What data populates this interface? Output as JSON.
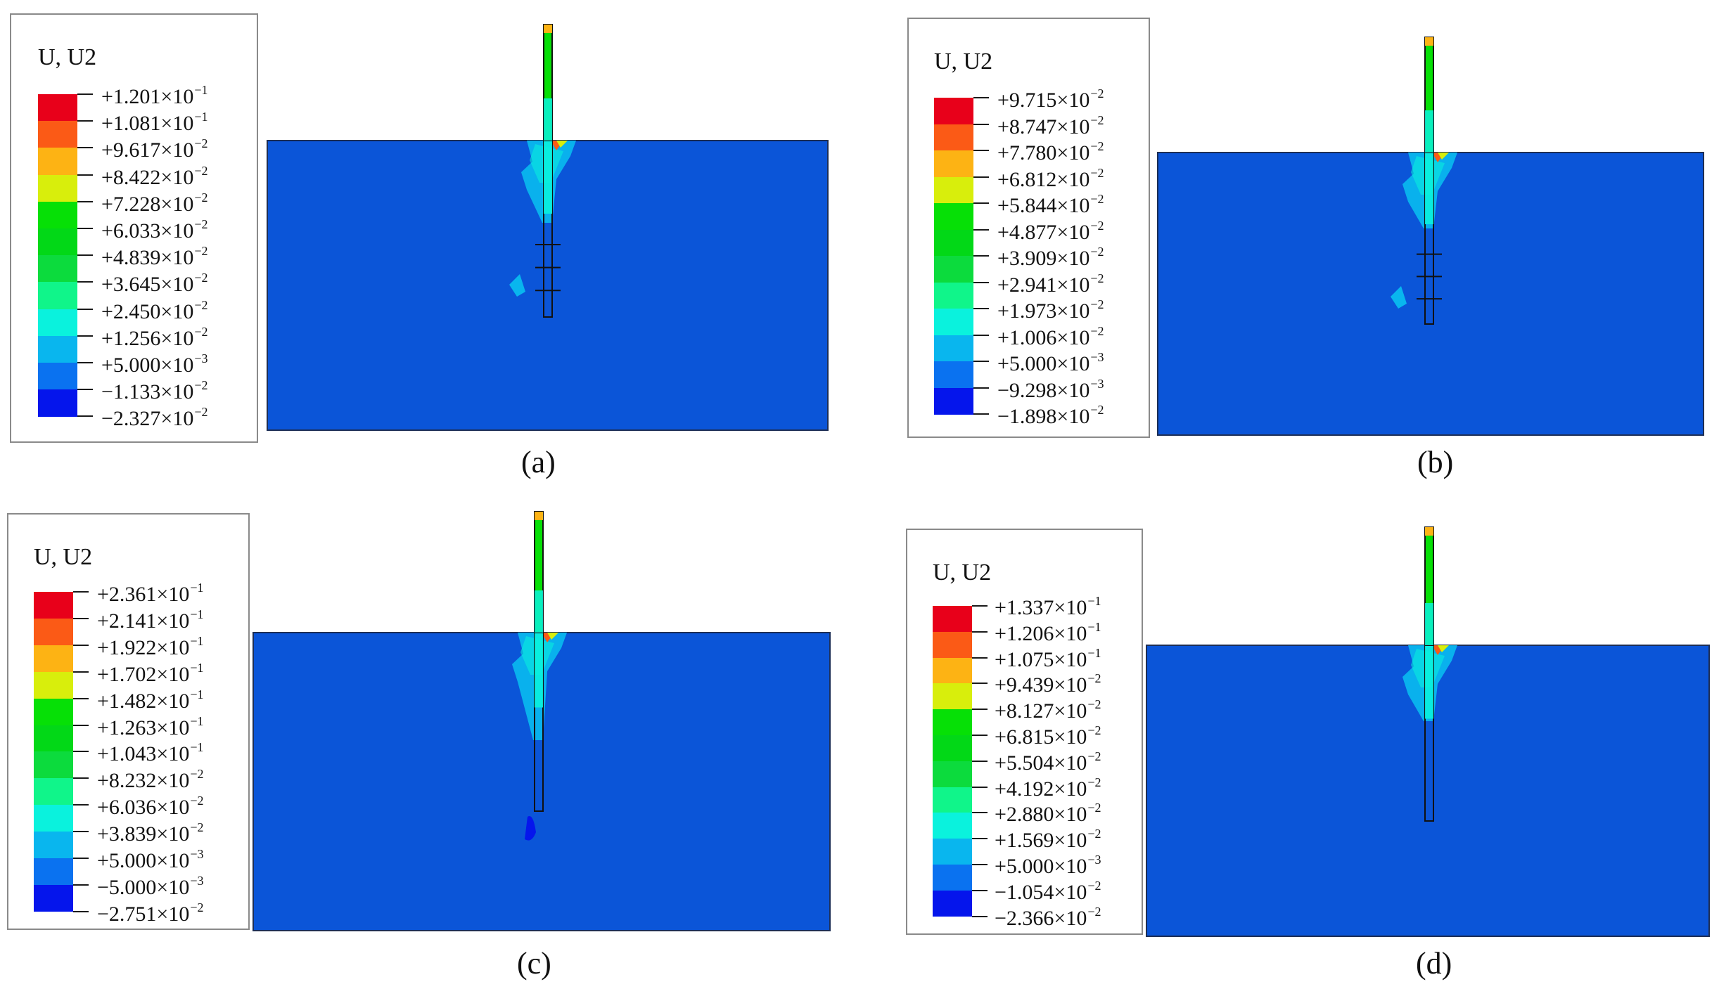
{
  "colormap": [
    "#e8001a",
    "#fb5a16",
    "#fdb314",
    "#d8ee0c",
    "#06e006",
    "#02d817",
    "#0cdb3d",
    "#10f58a",
    "#0af2dd",
    "#09b6ee",
    "#0a72f0",
    "#0515ec"
  ],
  "soil_color": "#0b55d8",
  "panels": [
    {
      "id": "a",
      "caption": "(a)",
      "legend": {
        "title": "U, U2",
        "labels": [
          {
            "sign": "+",
            "mant": "1.201",
            "exp": "−1"
          },
          {
            "sign": "+",
            "mant": "1.081",
            "exp": "−1"
          },
          {
            "sign": "+",
            "mant": "9.617",
            "exp": "−2"
          },
          {
            "sign": "+",
            "mant": "8.422",
            "exp": "−2"
          },
          {
            "sign": "+",
            "mant": "7.228",
            "exp": "−2"
          },
          {
            "sign": "+",
            "mant": "6.033",
            "exp": "−2"
          },
          {
            "sign": "+",
            "mant": "4.839",
            "exp": "−2"
          },
          {
            "sign": "+",
            "mant": "3.645",
            "exp": "−2"
          },
          {
            "sign": "+",
            "mant": "2.450",
            "exp": "−2"
          },
          {
            "sign": "+",
            "mant": "1.256",
            "exp": "−2"
          },
          {
            "sign": "+",
            "mant": "5.000",
            "exp": "−3"
          },
          {
            "sign": "−",
            "mant": "1.133",
            "exp": "−2"
          },
          {
            "sign": "−",
            "mant": "2.327",
            "exp": "−2"
          }
        ]
      }
    },
    {
      "id": "b",
      "caption": "(b)",
      "legend": {
        "title": "U, U2",
        "labels": [
          {
            "sign": "+",
            "mant": "9.715",
            "exp": "−2"
          },
          {
            "sign": "+",
            "mant": "8.747",
            "exp": "−2"
          },
          {
            "sign": "+",
            "mant": "7.780",
            "exp": "−2"
          },
          {
            "sign": "+",
            "mant": "6.812",
            "exp": "−2"
          },
          {
            "sign": "+",
            "mant": "5.844",
            "exp": "−2"
          },
          {
            "sign": "+",
            "mant": "4.877",
            "exp": "−2"
          },
          {
            "sign": "+",
            "mant": "3.909",
            "exp": "−2"
          },
          {
            "sign": "+",
            "mant": "2.941",
            "exp": "−2"
          },
          {
            "sign": "+",
            "mant": "1.973",
            "exp": "−2"
          },
          {
            "sign": "+",
            "mant": "1.006",
            "exp": "−2"
          },
          {
            "sign": "+",
            "mant": "5.000",
            "exp": "−3"
          },
          {
            "sign": "−",
            "mant": "9.298",
            "exp": "−3"
          },
          {
            "sign": "−",
            "mant": "1.898",
            "exp": "−2"
          }
        ]
      }
    },
    {
      "id": "c",
      "caption": "(c)",
      "legend": {
        "title": "U, U2",
        "labels": [
          {
            "sign": "+",
            "mant": "2.361",
            "exp": "−1"
          },
          {
            "sign": "+",
            "mant": "2.141",
            "exp": "−1"
          },
          {
            "sign": "+",
            "mant": "1.922",
            "exp": "−1"
          },
          {
            "sign": "+",
            "mant": "1.702",
            "exp": "−1"
          },
          {
            "sign": "+",
            "mant": "1.482",
            "exp": "−1"
          },
          {
            "sign": "+",
            "mant": "1.263",
            "exp": "−1"
          },
          {
            "sign": "+",
            "mant": "1.043",
            "exp": "−1"
          },
          {
            "sign": "+",
            "mant": "8.232",
            "exp": "−2"
          },
          {
            "sign": "+",
            "mant": "6.036",
            "exp": "−2"
          },
          {
            "sign": "+",
            "mant": "3.839",
            "exp": "−2"
          },
          {
            "sign": "+",
            "mant": "5.000",
            "exp": "−3"
          },
          {
            "sign": "−",
            "mant": "5.000",
            "exp": "−3"
          },
          {
            "sign": "−",
            "mant": "2.751",
            "exp": "−2"
          }
        ]
      }
    },
    {
      "id": "d",
      "caption": "(d)",
      "legend": {
        "title": "U, U2",
        "labels": [
          {
            "sign": "+",
            "mant": "1.337",
            "exp": "−1"
          },
          {
            "sign": "+",
            "mant": "1.206",
            "exp": "−1"
          },
          {
            "sign": "+",
            "mant": "1.075",
            "exp": "−1"
          },
          {
            "sign": "+",
            "mant": "9.439",
            "exp": "−2"
          },
          {
            "sign": "+",
            "mant": "8.127",
            "exp": "−2"
          },
          {
            "sign": "+",
            "mant": "6.815",
            "exp": "−2"
          },
          {
            "sign": "+",
            "mant": "5.504",
            "exp": "−2"
          },
          {
            "sign": "+",
            "mant": "4.192",
            "exp": "−2"
          },
          {
            "sign": "+",
            "mant": "2.880",
            "exp": "−2"
          },
          {
            "sign": "+",
            "mant": "1.569",
            "exp": "−2"
          },
          {
            "sign": "+",
            "mant": "5.000",
            "exp": "−3"
          },
          {
            "sign": "−",
            "mant": "1.054",
            "exp": "−2"
          },
          {
            "sign": "−",
            "mant": "2.366",
            "exp": "−2"
          }
        ]
      }
    }
  ]
}
